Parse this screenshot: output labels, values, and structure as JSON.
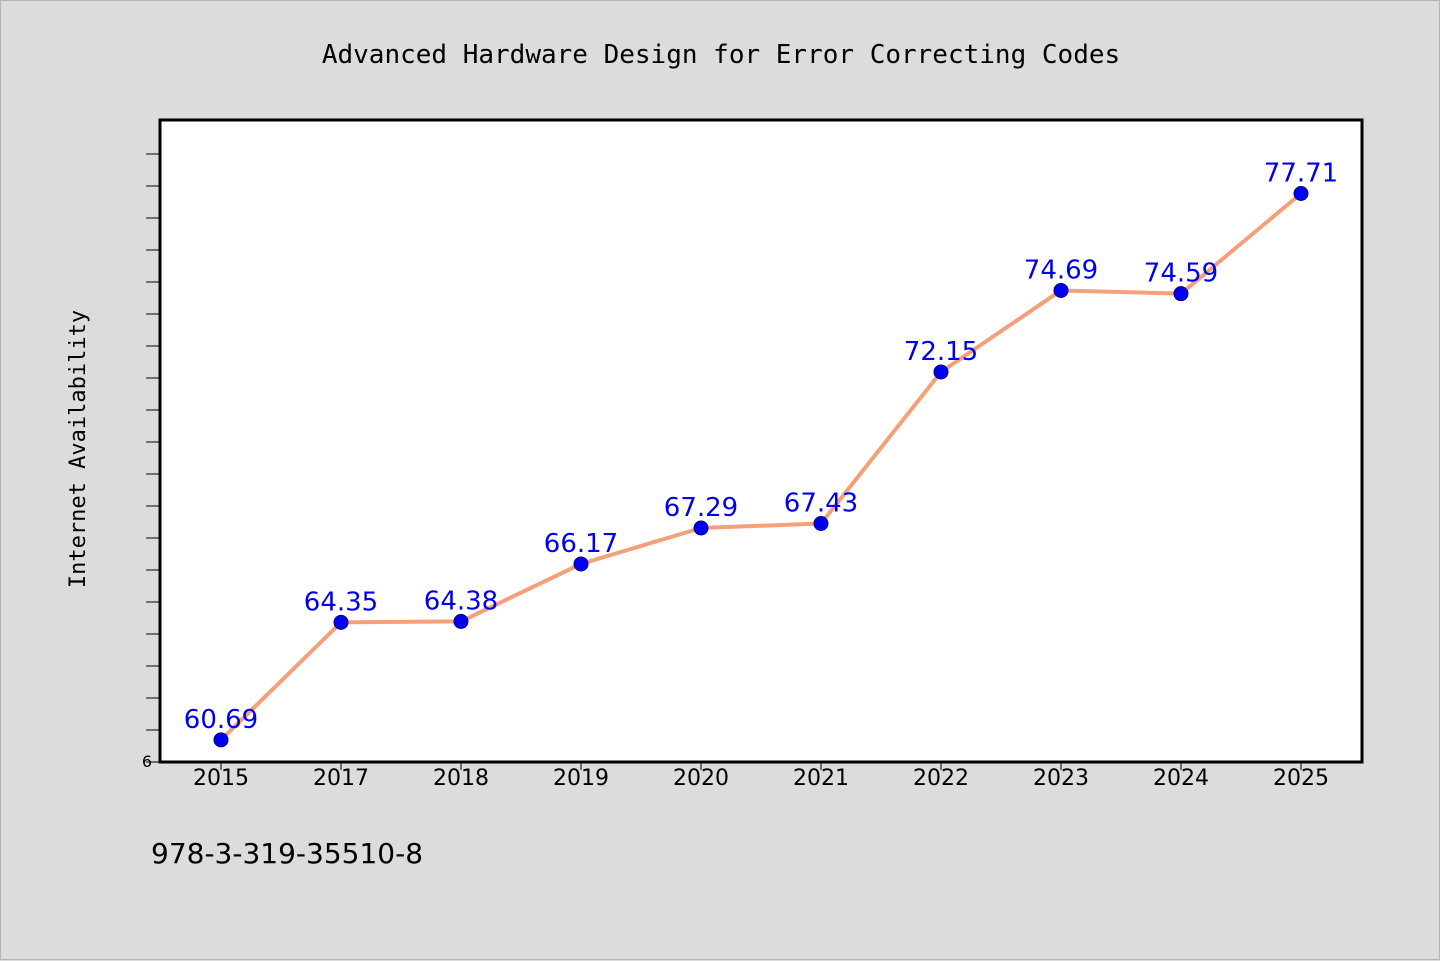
{
  "chart_data": {
    "type": "line",
    "title": "Advanced Hardware Design for Error Correcting Codes",
    "xlabel": "",
    "ylabel": "Internet Availability",
    "categories": [
      "2015",
      "2017",
      "2018",
      "2019",
      "2020",
      "2021",
      "2022",
      "2023",
      "2024",
      "2025"
    ],
    "series": [
      {
        "values": [
          60.69,
          64.35,
          64.38,
          66.17,
          67.29,
          67.43,
          72.15,
          74.69,
          74.59,
          77.71
        ],
        "labels": [
          "60.69",
          "64.35",
          "64.38",
          "66.17",
          "67.29",
          "67.43",
          "72.15",
          "74.69",
          "74.59",
          "77.71"
        ],
        "line_color": "#f4a07a",
        "marker_color": "#0000ee"
      }
    ],
    "ylim": [
      60,
      80
    ],
    "y_tick_labels": [
      "6"
    ],
    "grid": false,
    "legend": "none"
  },
  "footer": {
    "isbn": "978-3-319-35510-8"
  },
  "colors": {
    "background": "#dcdcdc",
    "plot_background": "#ffffff",
    "label_color": "#0000ee"
  }
}
